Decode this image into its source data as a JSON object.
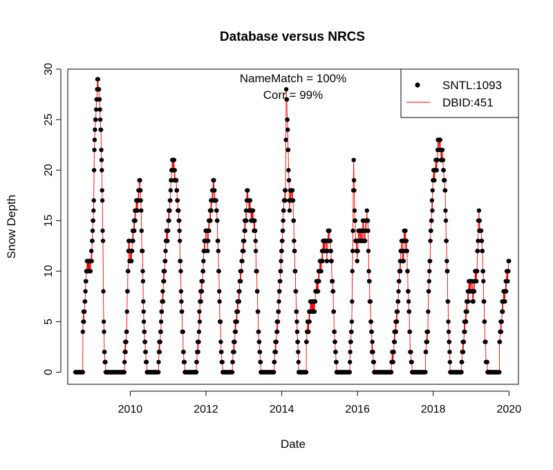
{
  "chart_data": {
    "type": "line",
    "title": "Database versus NRCS",
    "xlabel": "Date",
    "ylabel": "Snow Depth",
    "xlim": [
      2008.35,
      2020.25
    ],
    "ylim": [
      -1.2,
      30.0
    ],
    "xticks": [
      2010,
      2012,
      2014,
      2016,
      2018,
      2020
    ],
    "xtick_labels": [
      "2010",
      "2012",
      "2014",
      "2016",
      "2018",
      "2020"
    ],
    "yticks": [
      0,
      5,
      10,
      15,
      20,
      25,
      30
    ],
    "ytick_labels": [
      "0",
      "5",
      "10",
      "15",
      "20",
      "25",
      "30"
    ],
    "annotations": {
      "name_match": "NameMatch = 100%",
      "corr": "Corr = 99%"
    },
    "legend": {
      "position": "top-right",
      "entries": [
        {
          "label": "SNTL:1093",
          "style": "point",
          "color": "#000000"
        },
        {
          "label": "DBID:451",
          "style": "line",
          "color": "#ff0000"
        }
      ]
    },
    "series": [
      {
        "name": "SNTL:1093",
        "style": "points",
        "color": "#000000",
        "seasons": [
          {
            "start": 2008.75,
            "end": 2009.4,
            "x": [
              2008.75,
              2008.8,
              2008.85,
              2008.9,
              2008.95,
              2009.0,
              2009.03,
              2009.06,
              2009.08,
              2009.1,
              2009.12,
              2009.15,
              2009.18,
              2009.2,
              2009.22,
              2009.25,
              2009.28,
              2009.3,
              2009.33,
              2009.36,
              2009.4
            ],
            "y": [
              4,
              7,
              10,
              11,
              10,
              13,
              16,
              23,
              25,
              26,
              27,
              29,
              27,
              26,
              24,
              20,
              13,
              5,
              1,
              0,
              0
            ]
          },
          {
            "start": 2009.85,
            "end": 2010.45,
            "x": [
              2009.85,
              2009.9,
              2009.93,
              2009.96,
              2010.0,
              2010.05,
              2010.1,
              2010.15,
              2010.2,
              2010.25,
              2010.28,
              2010.3,
              2010.33,
              2010.36,
              2010.4,
              2010.45
            ],
            "y": [
              1,
              4,
              8,
              13,
              11,
              12,
              15,
              16,
              17,
              19,
              17,
              14,
              10,
              5,
              2,
              0
            ]
          },
          {
            "start": 2010.75,
            "end": 2011.45,
            "x": [
              2010.75,
              2010.8,
              2010.85,
              2010.9,
              2010.95,
              2011.0,
              2011.05,
              2011.1,
              2011.12,
              2011.15,
              2011.2,
              2011.25,
              2011.3,
              2011.35,
              2011.4,
              2011.45
            ],
            "y": [
              1,
              4,
              7,
              10,
              13,
              14,
              17,
              20,
              21,
              20,
              19,
              17,
              14,
              7,
              2,
              0
            ]
          },
          {
            "start": 2011.75,
            "end": 2012.45,
            "x": [
              2011.75,
              2011.8,
              2011.85,
              2011.9,
              2011.95,
              2012.0,
              2012.05,
              2012.1,
              2012.15,
              2012.2,
              2012.25,
              2012.3,
              2012.35,
              2012.4,
              2012.45
            ],
            "y": [
              1,
              3,
              7,
              9,
              12,
              14,
              13,
              15,
              17,
              18,
              17,
              15,
              8,
              2,
              0
            ]
          },
          {
            "start": 2012.7,
            "end": 2013.45,
            "x": [
              2012.7,
              2012.75,
              2012.8,
              2012.85,
              2012.9,
              2012.95,
              2013.0,
              2013.05,
              2013.1,
              2013.12,
              2013.15,
              2013.2,
              2013.25,
              2013.3,
              2013.35,
              2013.4,
              2013.45
            ],
            "y": [
              1,
              3,
              5,
              7,
              9,
              11,
              13,
              15,
              18,
              17,
              16,
              16,
              15,
              14,
              8,
              3,
              0
            ]
          },
          {
            "start": 2013.8,
            "end": 2014.45,
            "x": [
              2013.8,
              2013.85,
              2013.9,
              2013.95,
              2014.0,
              2014.03,
              2014.06,
              2014.1,
              2014.12,
              2014.15,
              2014.18,
              2014.2,
              2014.25,
              2014.3,
              2014.35,
              2014.4,
              2014.45
            ],
            "y": [
              1,
              3,
              5,
              9,
              12,
              14,
              17,
              18,
              28,
              25,
              20,
              17,
              18,
              17,
              10,
              5,
              0
            ]
          },
          {
            "start": 2014.65,
            "end": 2015.45,
            "x": [
              2014.65,
              2014.7,
              2014.75,
              2014.8,
              2014.85,
              2014.9,
              2014.95,
              2015.0,
              2015.05,
              2015.1,
              2015.15,
              2015.2,
              2015.25,
              2015.3,
              2015.35,
              2015.4,
              2015.45
            ],
            "y": [
              3,
              5,
              6,
              7,
              6,
              8,
              9,
              10,
              11,
              12,
              13,
              12,
              14,
              12,
              8,
              3,
              0
            ]
          },
          {
            "start": 2015.8,
            "end": 2016.45,
            "x": [
              2015.8,
              2015.85,
              2015.88,
              2015.9,
              2015.93,
              2015.95,
              2016.0,
              2016.05,
              2016.1,
              2016.15,
              2016.2,
              2016.25,
              2016.28,
              2016.3,
              2016.35,
              2016.4,
              2016.45
            ],
            "y": [
              1,
              5,
              14,
              21,
              15,
              13,
              12,
              14,
              13,
              14,
              13,
              16,
              14,
              10,
              5,
              2,
              0
            ]
          },
          {
            "start": 2016.9,
            "end": 2017.45,
            "x": [
              2016.9,
              2016.95,
              2017.0,
              2017.05,
              2017.1,
              2017.15,
              2017.18,
              2017.2,
              2017.25,
              2017.3,
              2017.35,
              2017.4,
              2017.45
            ],
            "y": [
              1,
              2,
              4,
              6,
              9,
              12,
              13,
              11,
              14,
              12,
              7,
              2,
              0
            ]
          },
          {
            "start": 2017.8,
            "end": 2018.45,
            "x": [
              2017.8,
              2017.85,
              2017.9,
              2017.95,
              2018.0,
              2018.05,
              2018.1,
              2018.15,
              2018.2,
              2018.25,
              2018.3,
              2018.35,
              2018.4,
              2018.45
            ],
            "y": [
              2,
              4,
              10,
              15,
              19,
              20,
              21,
              23,
              22,
              21,
              19,
              13,
              5,
              0
            ]
          },
          {
            "start": 2018.75,
            "end": 2019.45,
            "x": [
              2018.75,
              2018.8,
              2018.85,
              2018.9,
              2018.95,
              2019.0,
              2019.05,
              2019.1,
              2019.15,
              2019.2,
              2019.25,
              2019.3,
              2019.35,
              2019.4,
              2019.45
            ],
            "y": [
              1,
              3,
              5,
              7,
              8,
              9,
              8,
              9,
              10,
              15,
              14,
              12,
              5,
              1,
              0
            ]
          },
          {
            "start": 2019.75,
            "end": 2020.0,
            "x": [
              2019.75,
              2019.8,
              2019.85,
              2019.9,
              2019.95,
              2020.0
            ],
            "y": [
              3,
              5,
              7,
              8,
              9,
              11
            ]
          }
        ]
      },
      {
        "name": "DBID:451",
        "style": "line",
        "color": "#ff0000",
        "note": "Traces the same daily values as SNTL:1093"
      }
    ],
    "zero_periods": [
      [
        2008.55,
        2008.75
      ],
      [
        2009.4,
        2009.85
      ],
      [
        2010.45,
        2010.75
      ],
      [
        2011.45,
        2011.75
      ],
      [
        2012.45,
        2012.7
      ],
      [
        2013.45,
        2013.8
      ],
      [
        2014.45,
        2014.65
      ],
      [
        2015.45,
        2015.8
      ],
      [
        2016.45,
        2016.9
      ],
      [
        2017.45,
        2017.8
      ],
      [
        2018.45,
        2018.75
      ],
      [
        2019.45,
        2019.75
      ]
    ]
  }
}
